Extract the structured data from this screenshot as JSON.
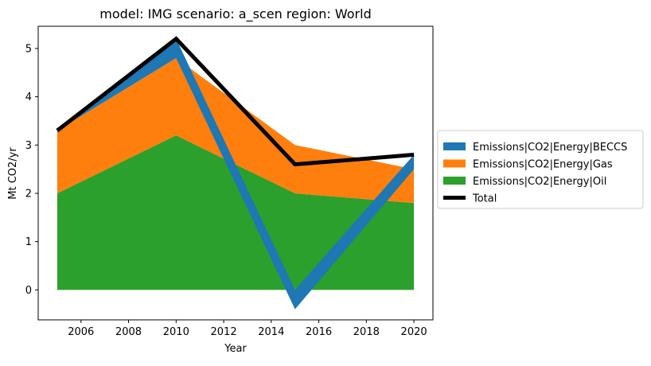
{
  "chart_data": {
    "type": "area",
    "title": "model: IMG scenario: a_scen region: World",
    "xlabel": "Year",
    "ylabel": "Mt CO2/yr",
    "x": [
      2005,
      2010,
      2015,
      2020
    ],
    "xlim": [
      2004.2,
      2020.8
    ],
    "ylim": [
      -0.62,
      5.46
    ],
    "xticks": [
      2006,
      2008,
      2010,
      2012,
      2014,
      2016,
      2018,
      2020
    ],
    "yticks": [
      0,
      1,
      2,
      3,
      4,
      5
    ],
    "grid": false,
    "legend_position": "right-outside",
    "stack_order": [
      "Emissions|CO2|Energy|Oil",
      "Emissions|CO2|Energy|Gas"
    ],
    "series": [
      {
        "name": "Emissions|CO2|Energy|BECCS",
        "values": [
          0.0,
          0.4,
          -0.4,
          0.3
        ],
        "color": "#1f77b4"
      },
      {
        "name": "Emissions|CO2|Energy|Gas",
        "values": [
          1.3,
          1.6,
          1.0,
          0.7
        ],
        "color": "#ff7f0e"
      },
      {
        "name": "Emissions|CO2|Energy|Oil",
        "values": [
          2.0,
          3.2,
          2.0,
          1.8
        ],
        "color": "#2ca02c"
      }
    ],
    "total": {
      "name": "Total",
      "values": [
        3.3,
        5.2,
        2.6,
        2.8
      ],
      "color": "#000000"
    }
  }
}
